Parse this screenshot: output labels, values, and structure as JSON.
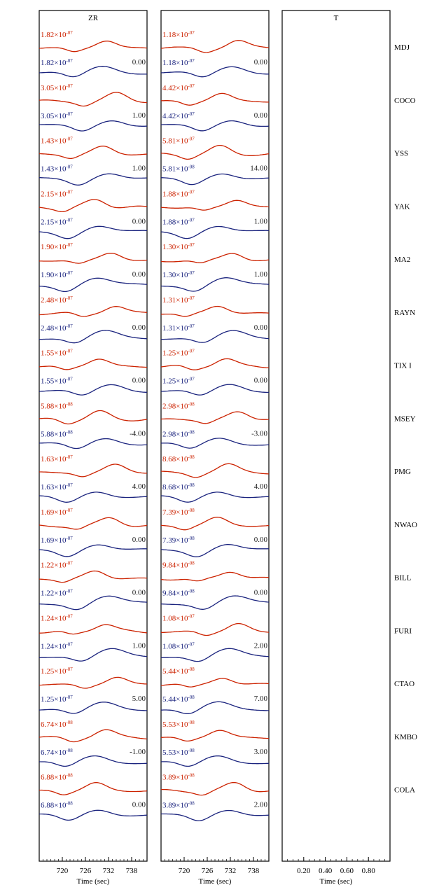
{
  "chart_data": {
    "type": "line",
    "colors": {
      "observed": "#cc2200",
      "synthetic": "#1a237e",
      "frame": "#000000",
      "text": "#1a1a1a"
    },
    "stations": [
      "MDJ",
      "COCO",
      "YSS",
      "YAK",
      "MA2",
      "RAYN",
      "TIX I",
      "MSEY",
      "PMG",
      "NWAO",
      "BILL",
      "FURI",
      "CTAO",
      "KMBO",
      "COLA"
    ],
    "panels": [
      {
        "title": "ZR",
        "xlabel": "Time (sec)",
        "xlim": [
          714,
          742
        ],
        "xticks": [
          "720",
          "726",
          "732",
          "738"
        ],
        "xtick_values": [
          720,
          726,
          732,
          738
        ],
        "amplitudes_observed": [
          "1.82×10-07",
          "3.05×10-07",
          "1.43×10-07",
          "2.15×10-07",
          "1.90×10-07",
          "2.48×10-07",
          "1.55×10-07",
          "5.88×10-08",
          "1.63×10-07",
          "1.69×10-07",
          "1.22×10-07",
          "1.24×10-07",
          "1.25×10-07",
          "6.74×10-08",
          "6.88×10-08"
        ],
        "amplitudes_synthetic": [
          "1.82×10-07",
          "3.05×10-07",
          "1.43×10-07",
          "2.15×10-07",
          "1.90×10-07",
          "2.48×10-07",
          "1.55×10-07",
          "5.88×10-08",
          "1.63×10-07",
          "1.69×10-07",
          "1.22×10-07",
          "1.24×10-07",
          "1.25×10-07",
          "6.74×10-08",
          "6.88×10-08"
        ],
        "shifts": [
          "0.00",
          "1.00",
          "1.00",
          "0.00",
          "0.00",
          "0.00",
          "0.00",
          "-4.00",
          "4.00",
          "0.00",
          "0.00",
          "1.00",
          "5.00",
          "-1.00",
          "0.00"
        ]
      },
      {
        "title": "",
        "xlabel": "Time (sec)",
        "xlim": [
          714,
          742
        ],
        "xticks": [
          "720",
          "726",
          "732",
          "738"
        ],
        "xtick_values": [
          720,
          726,
          732,
          738
        ],
        "amplitudes_observed": [
          "1.18×10-07",
          "4.42×10-07",
          "5.81×10-07",
          "1.88×10-07",
          "1.30×10-07",
          "1.31×10-07",
          "1.25×10-07",
          "2.98×10-08",
          "8.68×10-08",
          "7.39×10-08",
          "9.84×10-08",
          "1.08×10-07",
          "5.44×10-08",
          "5.53×10-08",
          "3.89×10-08"
        ],
        "amplitudes_synthetic": [
          "1.18×10-07",
          "4.42×10-07",
          "5.81×10-08",
          "1.88×10-07",
          "1.30×10-07",
          "1.31×10-07",
          "1.25×10-07",
          "2.98×10-08",
          "8.68×10-08",
          "7.39×10-08",
          "9.84×10-08",
          "1.08×10-07",
          "5.44×10-08",
          "5.53×10-08",
          "3.89×10-08"
        ],
        "shifts": [
          "0.00",
          "0.00",
          "14.00",
          "1.00",
          "1.00",
          "0.00",
          "0.00",
          "-3.00",
          "4.00",
          "0.00",
          "0.00",
          "2.00",
          "7.00",
          "3.00",
          "2.00"
        ]
      },
      {
        "title": "T",
        "xlabel": "Time (sec)",
        "xlim": [
          0,
          1
        ],
        "xticks": [
          "0.20",
          "0.40",
          "0.60",
          "0.80"
        ],
        "xtick_values": [
          0.2,
          0.4,
          0.6,
          0.8
        ]
      }
    ]
  }
}
